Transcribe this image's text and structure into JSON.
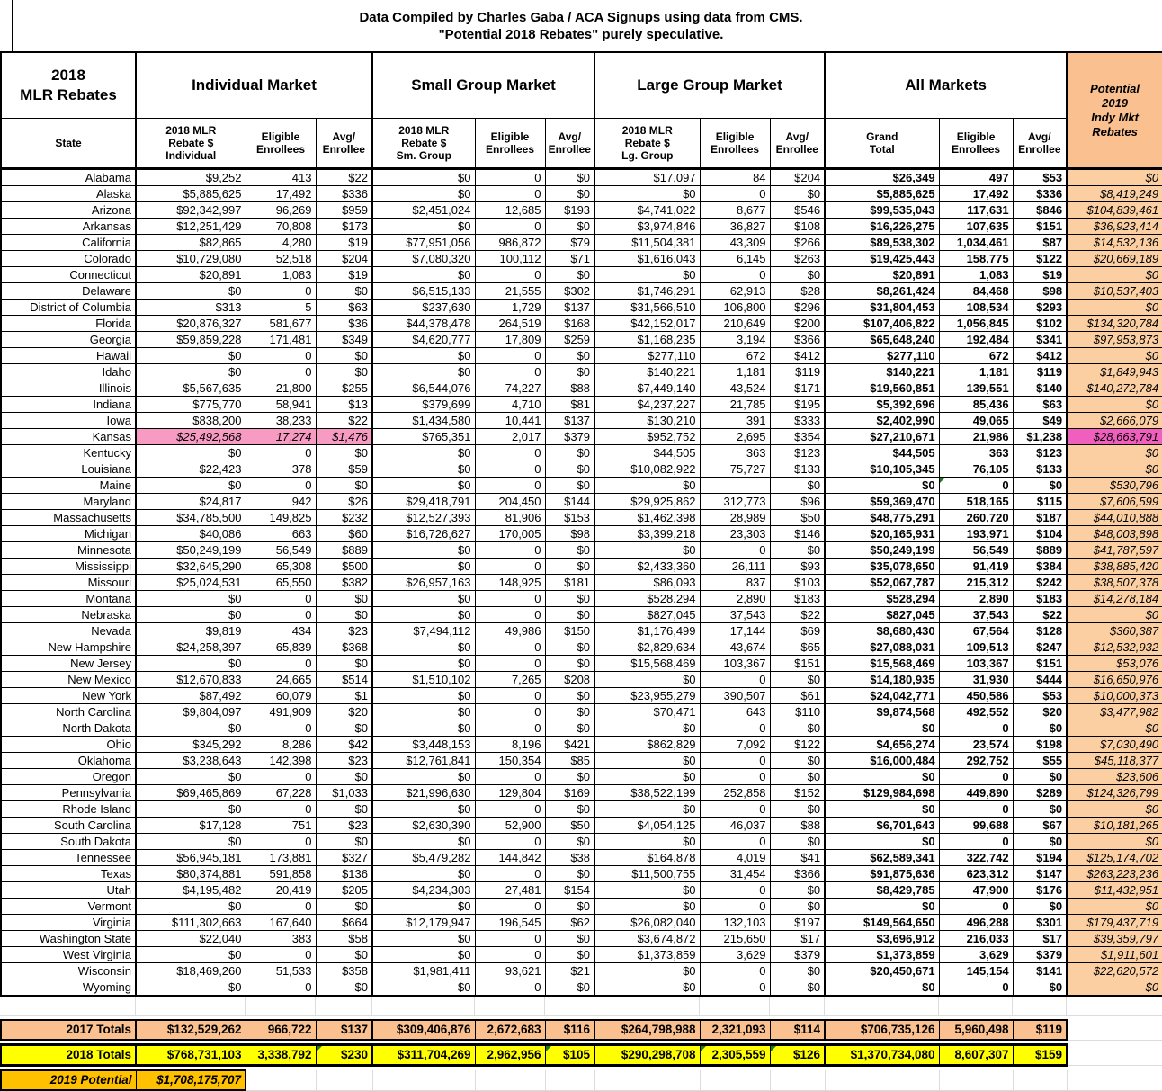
{
  "title": {
    "line1": "Data Compiled by Charles Gaba / ACA Signups using data from CMS.",
    "line2": "\"Potential 2018 Rebates\" purely speculative."
  },
  "header": {
    "corner": "2018\nMLR Rebates",
    "groups": [
      {
        "label": "Individual Market"
      },
      {
        "label": "Small Group Market"
      },
      {
        "label": "Large Group Market"
      },
      {
        "label": "All Markets"
      }
    ],
    "potential": "Potential\n2019\nIndy Mkt\nRebates",
    "columns": [
      "State",
      "2018 MLR\nRebate $\nIndividual",
      "Eligible\nEnrollees",
      "Avg/\nEnrollee",
      "2018 MLR\nRebate $\nSm. Group",
      "Eligible\nEnrollees",
      "Avg/\nEnrollee",
      "2018 MLR\nRebate $\nLg. Group",
      "Eligible\nEnrollees",
      "Avg/\nEnrollee",
      "Grand\nTotal",
      "Eligible\nEnrollees",
      "Avg/\nEnrollee"
    ]
  },
  "colors": {
    "peach": "#FAC08F",
    "peach_light": "#FBCFA2",
    "yellow": "#FFFF00",
    "gold": "#FFC000",
    "pink": "#F79BC3",
    "magenta": "#F05FBE",
    "flag_green": "#1E7B1E"
  },
  "chart_data": {
    "type": "table",
    "title": "2018 MLR Rebates",
    "rows": [
      {
        "state": "Alabama",
        "values": [
          "$9,252",
          "413",
          "$22",
          "$0",
          "0",
          "$0",
          "$17,097",
          "84",
          "$204",
          "$26,349",
          "497",
          "$53"
        ],
        "potential": "$0"
      },
      {
        "state": "Alaska",
        "values": [
          "$5,885,625",
          "17,492",
          "$336",
          "$0",
          "0",
          "$0",
          "$0",
          "0",
          "$0",
          "$5,885,625",
          "17,492",
          "$336"
        ],
        "potential": "$8,419,249"
      },
      {
        "state": "Arizona",
        "values": [
          "$92,342,997",
          "96,269",
          "$959",
          "$2,451,024",
          "12,685",
          "$193",
          "$4,741,022",
          "8,677",
          "$546",
          "$99,535,043",
          "117,631",
          "$846"
        ],
        "potential": "$104,839,461"
      },
      {
        "state": "Arkansas",
        "values": [
          "$12,251,429",
          "70,808",
          "$173",
          "$0",
          "0",
          "$0",
          "$3,974,846",
          "36,827",
          "$108",
          "$16,226,275",
          "107,635",
          "$151"
        ],
        "potential": "$36,923,414"
      },
      {
        "state": "California",
        "values": [
          "$82,865",
          "4,280",
          "$19",
          "$77,951,056",
          "986,872",
          "$79",
          "$11,504,381",
          "43,309",
          "$266",
          "$89,538,302",
          "1,034,461",
          "$87"
        ],
        "potential": "$14,532,136"
      },
      {
        "state": "Colorado",
        "values": [
          "$10,729,080",
          "52,518",
          "$204",
          "$7,080,320",
          "100,112",
          "$71",
          "$1,616,043",
          "6,145",
          "$263",
          "$19,425,443",
          "158,775",
          "$122"
        ],
        "potential": "$20,669,189"
      },
      {
        "state": "Connecticut",
        "values": [
          "$20,891",
          "1,083",
          "$19",
          "$0",
          "0",
          "$0",
          "$0",
          "0",
          "$0",
          "$20,891",
          "1,083",
          "$19"
        ],
        "potential": "$0"
      },
      {
        "state": "Delaware",
        "values": [
          "$0",
          "0",
          "$0",
          "$6,515,133",
          "21,555",
          "$302",
          "$1,746,291",
          "62,913",
          "$28",
          "$8,261,424",
          "84,468",
          "$98"
        ],
        "potential": "$10,537,403"
      },
      {
        "state": "District of Columbia",
        "values": [
          "$313",
          "5",
          "$63",
          "$237,630",
          "1,729",
          "$137",
          "$31,566,510",
          "106,800",
          "$296",
          "$31,804,453",
          "108,534",
          "$293"
        ],
        "potential": "$0"
      },
      {
        "state": "Florida",
        "values": [
          "$20,876,327",
          "581,677",
          "$36",
          "$44,378,478",
          "264,519",
          "$168",
          "$42,152,017",
          "210,649",
          "$200",
          "$107,406,822",
          "1,056,845",
          "$102"
        ],
        "potential": "$134,320,784"
      },
      {
        "state": "Georgia",
        "values": [
          "$59,859,228",
          "171,481",
          "$349",
          "$4,620,777",
          "17,809",
          "$259",
          "$1,168,235",
          "3,194",
          "$366",
          "$65,648,240",
          "192,484",
          "$341"
        ],
        "potential": "$97,953,873"
      },
      {
        "state": "Hawaii",
        "values": [
          "$0",
          "0",
          "$0",
          "$0",
          "0",
          "$0",
          "$277,110",
          "672",
          "$412",
          "$277,110",
          "672",
          "$412"
        ],
        "potential": "$0"
      },
      {
        "state": "Idaho",
        "values": [
          "$0",
          "0",
          "$0",
          "$0",
          "0",
          "$0",
          "$140,221",
          "1,181",
          "$119",
          "$140,221",
          "1,181",
          "$119"
        ],
        "potential": "$1,849,943"
      },
      {
        "state": "Illinois",
        "values": [
          "$5,567,635",
          "21,800",
          "$255",
          "$6,544,076",
          "74,227",
          "$88",
          "$7,449,140",
          "43,524",
          "$171",
          "$19,560,851",
          "139,551",
          "$140"
        ],
        "potential": "$140,272,784"
      },
      {
        "state": "Indiana",
        "values": [
          "$775,770",
          "58,941",
          "$13",
          "$379,699",
          "4,710",
          "$81",
          "$4,237,227",
          "21,785",
          "$195",
          "$5,392,696",
          "85,436",
          "$63"
        ],
        "potential": "$0"
      },
      {
        "state": "Iowa",
        "values": [
          "$838,200",
          "38,233",
          "$22",
          "$1,434,580",
          "10,441",
          "$137",
          "$130,210",
          "391",
          "$333",
          "$2,402,990",
          "49,065",
          "$49"
        ],
        "potential": "$2,666,079"
      },
      {
        "state": "Kansas",
        "hl": true,
        "values": [
          "$25,492,568",
          "17,274",
          "$1,476",
          "$765,351",
          "2,017",
          "$379",
          "$952,752",
          "2,695",
          "$354",
          "$27,210,671",
          "21,986",
          "$1,238"
        ],
        "potential": "$28,663,791"
      },
      {
        "state": "Kentucky",
        "values": [
          "$0",
          "0",
          "$0",
          "$0",
          "0",
          "$0",
          "$44,505",
          "363",
          "$123",
          "$44,505",
          "363",
          "$123"
        ],
        "potential": "$0"
      },
      {
        "state": "Louisiana",
        "values": [
          "$22,423",
          "378",
          "$59",
          "$0",
          "0",
          "$0",
          "$10,082,922",
          "75,727",
          "$133",
          "$10,105,345",
          "76,105",
          "$133"
        ],
        "potential": "$0"
      },
      {
        "state": "Maine",
        "tri": [
          10
        ],
        "values": [
          "$0",
          "0",
          "$0",
          "$0",
          "0",
          "$0",
          "$0",
          "",
          "$0",
          "$0",
          "0",
          "$0"
        ],
        "potential": "$530,796"
      },
      {
        "state": "Maryland",
        "values": [
          "$24,817",
          "942",
          "$26",
          "$29,418,791",
          "204,450",
          "$144",
          "$29,925,862",
          "312,773",
          "$96",
          "$59,369,470",
          "518,165",
          "$115"
        ],
        "potential": "$7,606,599"
      },
      {
        "state": "Massachusetts",
        "values": [
          "$34,785,500",
          "149,825",
          "$232",
          "$12,527,393",
          "81,906",
          "$153",
          "$1,462,398",
          "28,989",
          "$50",
          "$48,775,291",
          "260,720",
          "$187"
        ],
        "potential": "$44,010,888"
      },
      {
        "state": "Michigan",
        "values": [
          "$40,086",
          "663",
          "$60",
          "$16,726,627",
          "170,005",
          "$98",
          "$3,399,218",
          "23,303",
          "$146",
          "$20,165,931",
          "193,971",
          "$104"
        ],
        "potential": "$48,003,898"
      },
      {
        "state": "Minnesota",
        "values": [
          "$50,249,199",
          "56,549",
          "$889",
          "$0",
          "0",
          "$0",
          "$0",
          "0",
          "$0",
          "$50,249,199",
          "56,549",
          "$889"
        ],
        "potential": "$41,787,597"
      },
      {
        "state": "Mississippi",
        "values": [
          "$32,645,290",
          "65,308",
          "$500",
          "$0",
          "0",
          "$0",
          "$2,433,360",
          "26,111",
          "$93",
          "$35,078,650",
          "91,419",
          "$384"
        ],
        "potential": "$38,885,420"
      },
      {
        "state": "Missouri",
        "values": [
          "$25,024,531",
          "65,550",
          "$382",
          "$26,957,163",
          "148,925",
          "$181",
          "$86,093",
          "837",
          "$103",
          "$52,067,787",
          "215,312",
          "$242"
        ],
        "potential": "$38,507,378"
      },
      {
        "state": "Montana",
        "values": [
          "$0",
          "0",
          "$0",
          "$0",
          "0",
          "$0",
          "$528,294",
          "2,890",
          "$183",
          "$528,294",
          "2,890",
          "$183"
        ],
        "potential": "$14,278,184"
      },
      {
        "state": "Nebraska",
        "values": [
          "$0",
          "0",
          "$0",
          "$0",
          "0",
          "$0",
          "$827,045",
          "37,543",
          "$22",
          "$827,045",
          "37,543",
          "$22"
        ],
        "potential": "$0"
      },
      {
        "state": "Nevada",
        "values": [
          "$9,819",
          "434",
          "$23",
          "$7,494,112",
          "49,986",
          "$150",
          "$1,176,499",
          "17,144",
          "$69",
          "$8,680,430",
          "67,564",
          "$128"
        ],
        "potential": "$360,387"
      },
      {
        "state": "New Hampshire",
        "values": [
          "$24,258,397",
          "65,839",
          "$368",
          "$0",
          "0",
          "$0",
          "$2,829,634",
          "43,674",
          "$65",
          "$27,088,031",
          "109,513",
          "$247"
        ],
        "potential": "$12,532,932"
      },
      {
        "state": "New Jersey",
        "values": [
          "$0",
          "0",
          "$0",
          "$0",
          "0",
          "$0",
          "$15,568,469",
          "103,367",
          "$151",
          "$15,568,469",
          "103,367",
          "$151"
        ],
        "potential": "$53,076"
      },
      {
        "state": "New Mexico",
        "values": [
          "$12,670,833",
          "24,665",
          "$514",
          "$1,510,102",
          "7,265",
          "$208",
          "$0",
          "0",
          "$0",
          "$14,180,935",
          "31,930",
          "$444"
        ],
        "potential": "$16,650,976"
      },
      {
        "state": "New York",
        "values": [
          "$87,492",
          "60,079",
          "$1",
          "$0",
          "0",
          "$0",
          "$23,955,279",
          "390,507",
          "$61",
          "$24,042,771",
          "450,586",
          "$53"
        ],
        "potential": "$10,000,373"
      },
      {
        "state": "North Carolina",
        "values": [
          "$9,804,097",
          "491,909",
          "$20",
          "$0",
          "0",
          "$0",
          "$70,471",
          "643",
          "$110",
          "$9,874,568",
          "492,552",
          "$20"
        ],
        "potential": "$3,477,982"
      },
      {
        "state": "North Dakota",
        "values": [
          "$0",
          "0",
          "$0",
          "$0",
          "0",
          "$0",
          "$0",
          "0",
          "$0",
          "$0",
          "0",
          "$0"
        ],
        "potential": "$0"
      },
      {
        "state": "Ohio",
        "values": [
          "$345,292",
          "8,286",
          "$42",
          "$3,448,153",
          "8,196",
          "$421",
          "$862,829",
          "7,092",
          "$122",
          "$4,656,274",
          "23,574",
          "$198"
        ],
        "potential": "$7,030,490"
      },
      {
        "state": "Oklahoma",
        "values": [
          "$3,238,643",
          "142,398",
          "$23",
          "$12,761,841",
          "150,354",
          "$85",
          "$0",
          "0",
          "$0",
          "$16,000,484",
          "292,752",
          "$55"
        ],
        "potential": "$45,118,377"
      },
      {
        "state": "Oregon",
        "values": [
          "$0",
          "0",
          "$0",
          "$0",
          "0",
          "$0",
          "$0",
          "0",
          "$0",
          "$0",
          "0",
          "$0"
        ],
        "potential": "$23,606"
      },
      {
        "state": "Pennsylvania",
        "values": [
          "$69,465,869",
          "67,228",
          "$1,033",
          "$21,996,630",
          "129,804",
          "$169",
          "$38,522,199",
          "252,858",
          "$152",
          "$129,984,698",
          "449,890",
          "$289"
        ],
        "potential": "$124,326,799"
      },
      {
        "state": "Rhode Island",
        "values": [
          "$0",
          "0",
          "$0",
          "$0",
          "0",
          "$0",
          "$0",
          "0",
          "$0",
          "$0",
          "0",
          "$0"
        ],
        "potential": "$0"
      },
      {
        "state": "South Carolina",
        "values": [
          "$17,128",
          "751",
          "$23",
          "$2,630,390",
          "52,900",
          "$50",
          "$4,054,125",
          "46,037",
          "$88",
          "$6,701,643",
          "99,688",
          "$67"
        ],
        "potential": "$10,181,265"
      },
      {
        "state": "South Dakota",
        "values": [
          "$0",
          "0",
          "$0",
          "$0",
          "0",
          "$0",
          "$0",
          "0",
          "$0",
          "$0",
          "0",
          "$0"
        ],
        "potential": "$0"
      },
      {
        "state": "Tennessee",
        "values": [
          "$56,945,181",
          "173,881",
          "$327",
          "$5,479,282",
          "144,842",
          "$38",
          "$164,878",
          "4,019",
          "$41",
          "$62,589,341",
          "322,742",
          "$194"
        ],
        "potential": "$125,174,702"
      },
      {
        "state": "Texas",
        "values": [
          "$80,374,881",
          "591,858",
          "$136",
          "$0",
          "0",
          "$0",
          "$11,500,755",
          "31,454",
          "$366",
          "$91,875,636",
          "623,312",
          "$147"
        ],
        "potential": "$263,223,236"
      },
      {
        "state": "Utah",
        "values": [
          "$4,195,482",
          "20,419",
          "$205",
          "$4,234,303",
          "27,481",
          "$154",
          "$0",
          "0",
          "$0",
          "$8,429,785",
          "47,900",
          "$176"
        ],
        "potential": "$11,432,951"
      },
      {
        "state": "Vermont",
        "values": [
          "$0",
          "0",
          "$0",
          "$0",
          "0",
          "$0",
          "$0",
          "0",
          "$0",
          "$0",
          "0",
          "$0"
        ],
        "potential": "$0"
      },
      {
        "state": "Virginia",
        "values": [
          "$111,302,663",
          "167,640",
          "$664",
          "$12,179,947",
          "196,545",
          "$62",
          "$26,082,040",
          "132,103",
          "$197",
          "$149,564,650",
          "496,288",
          "$301"
        ],
        "potential": "$179,437,719"
      },
      {
        "state": "Washington State",
        "values": [
          "$22,040",
          "383",
          "$58",
          "$0",
          "0",
          "$0",
          "$3,674,872",
          "215,650",
          "$17",
          "$3,696,912",
          "216,033",
          "$17"
        ],
        "potential": "$39,359,797"
      },
      {
        "state": "West Virginia",
        "values": [
          "$0",
          "0",
          "$0",
          "$0",
          "0",
          "$0",
          "$1,373,859",
          "3,629",
          "$379",
          "$1,373,859",
          "3,629",
          "$379"
        ],
        "potential": "$1,911,601"
      },
      {
        "state": "Wisconsin",
        "values": [
          "$18,469,260",
          "51,533",
          "$358",
          "$1,981,411",
          "93,621",
          "$21",
          "$0",
          "0",
          "$0",
          "$20,450,671",
          "145,154",
          "$141"
        ],
        "potential": "$22,620,572"
      },
      {
        "state": "Wyoming",
        "values": [
          "$0",
          "0",
          "$0",
          "$0",
          "0",
          "$0",
          "$0",
          "0",
          "$0",
          "$0",
          "0",
          "$0"
        ],
        "potential": "$0"
      }
    ],
    "totals_2017": {
      "label": "2017 Totals",
      "values": [
        "$132,529,262",
        "966,722",
        "$137",
        "$309,406,876",
        "2,672,683",
        "$116",
        "$264,798,988",
        "2,321,093",
        "$114",
        "$706,735,126",
        "5,960,498",
        "$119"
      ]
    },
    "totals_2018": {
      "label": "2018 Totals",
      "tri": [
        2,
        5,
        7,
        8
      ],
      "values": [
        "$768,731,103",
        "3,338,792",
        "$230",
        "$311,704,269",
        "2,962,956",
        "$105",
        "$290,298,708",
        "2,305,559",
        "$126",
        "$1,370,734,080",
        "8,607,307",
        "$159"
      ]
    },
    "potential_2019": {
      "label": "2019 Potential",
      "value": "$1,708,175,707"
    }
  }
}
